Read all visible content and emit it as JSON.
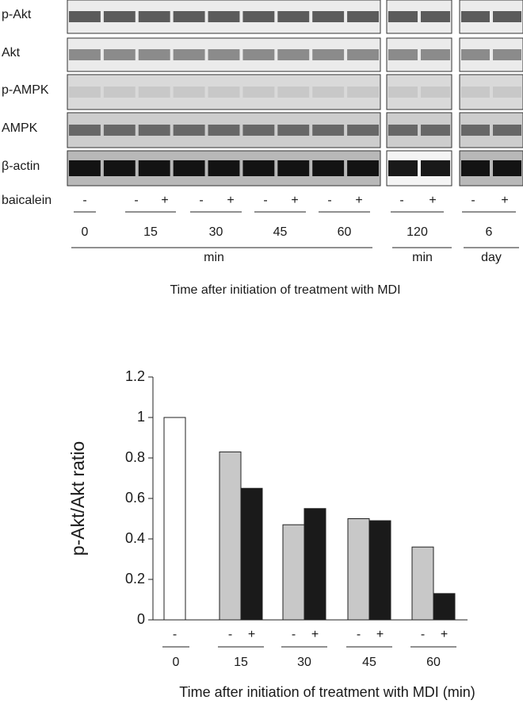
{
  "blot": {
    "rows": [
      "p-Akt",
      "Akt",
      "p-AMPK",
      "AMPK",
      "β-actin"
    ],
    "treatment_label": "baicalein",
    "groups": [
      {
        "time": "0",
        "signs": [
          "-"
        ]
      },
      {
        "time": "15",
        "signs": [
          "-",
          "+"
        ]
      },
      {
        "time": "30",
        "signs": [
          "-",
          "+"
        ]
      },
      {
        "time": "45",
        "signs": [
          "-",
          "+"
        ]
      },
      {
        "time": "60",
        "signs": [
          "-",
          "+"
        ]
      },
      {
        "time": "120",
        "signs": [
          "-",
          "+"
        ]
      },
      {
        "time": "6",
        "signs": [
          "-",
          "+"
        ]
      }
    ],
    "units": [
      "min",
      "min",
      "day"
    ],
    "caption": "Time after initiation of treatment with MDI"
  },
  "chart_data": {
    "type": "bar",
    "ylabel": "p-Akt/Akt ratio",
    "xlabel": "Time after initiation of treatment with MDI (min)",
    "categories": [
      "0",
      "15",
      "30",
      "45",
      "60"
    ],
    "series": [
      {
        "name": "-",
        "color": "#c8c8c8",
        "colors": [
          "#ffffff",
          "#c8c8c8",
          "#c8c8c8",
          "#c8c8c8",
          "#c8c8c8"
        ],
        "values": [
          1.0,
          0.83,
          0.47,
          0.5,
          0.36
        ]
      },
      {
        "name": "+",
        "color": "#1a1a1a",
        "values": [
          null,
          0.65,
          0.55,
          0.49,
          0.13
        ]
      }
    ],
    "ylim": [
      0,
      1.2
    ],
    "yticks": [
      0,
      0.2,
      0.4,
      0.6,
      0.8,
      1,
      1.2
    ]
  }
}
